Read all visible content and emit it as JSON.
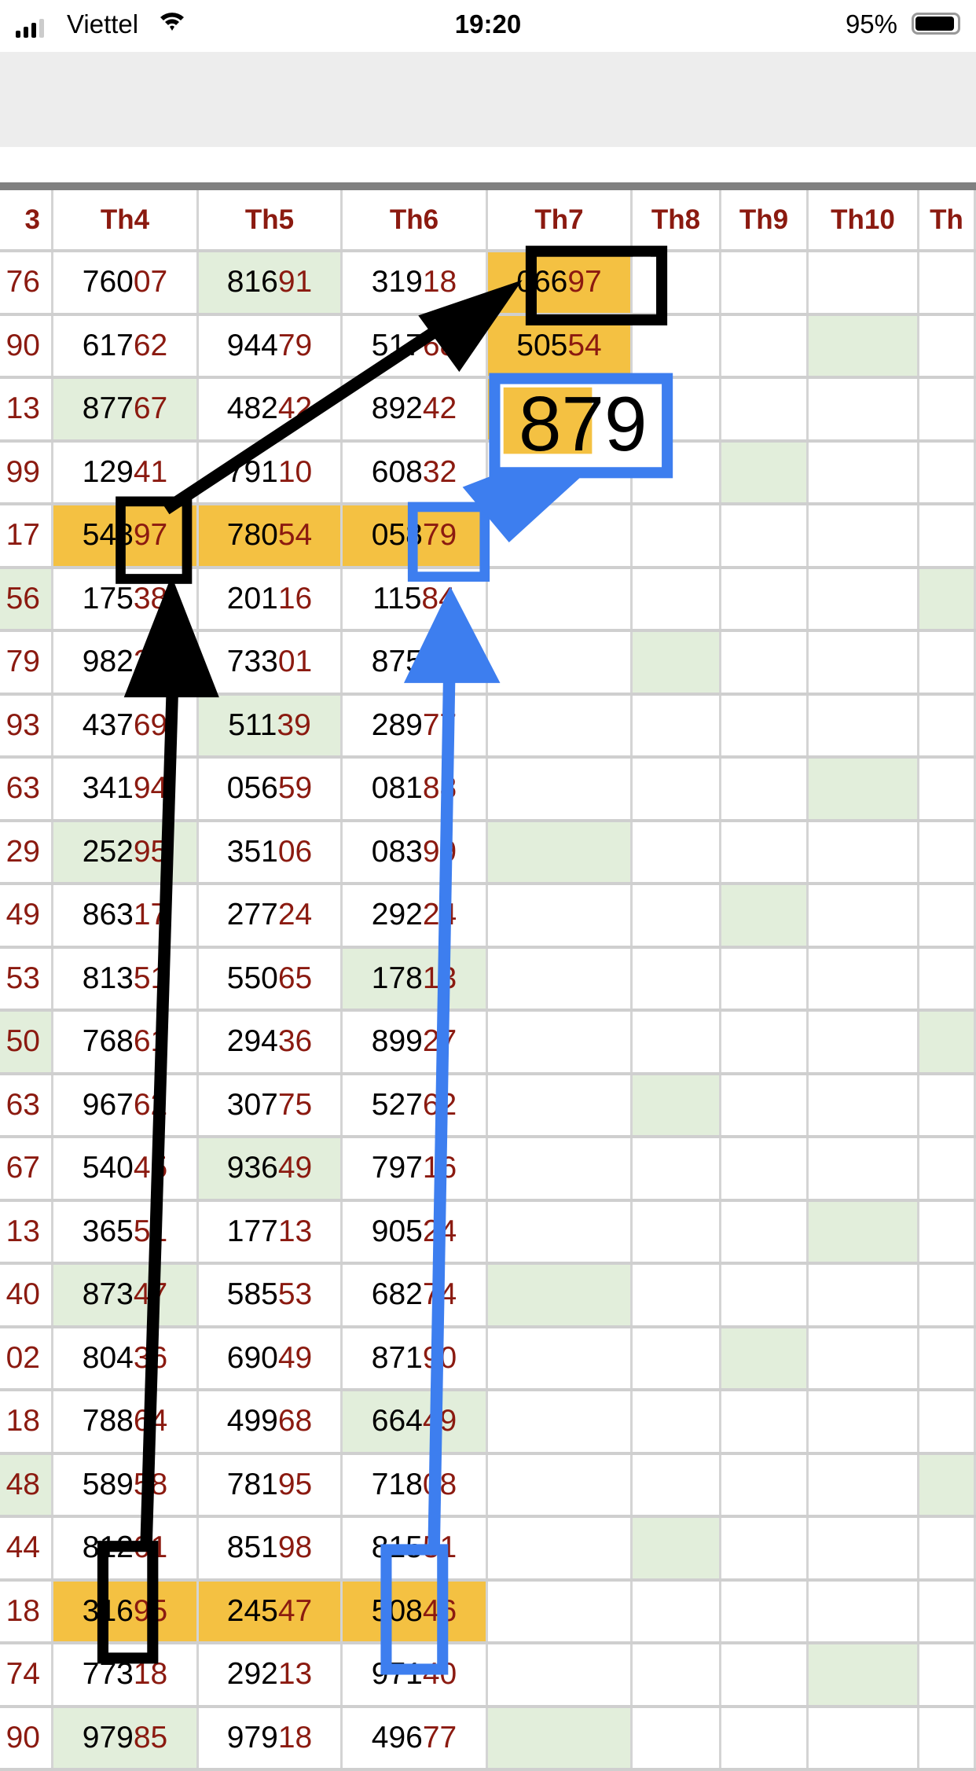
{
  "status_bar": {
    "carrier": "Viettel",
    "time": "19:20",
    "battery": "95%",
    "battery_level": 0.95,
    "icons": [
      "signal-icon",
      "wifi-icon",
      "battery-icon"
    ]
  },
  "table": {
    "headers": [
      "3",
      "Th4",
      "Th5",
      "Th6",
      "Th7",
      "Th8",
      "Th9",
      "Th10",
      "Th"
    ],
    "rows": [
      {
        "cells": [
          "76",
          "76007",
          "81691",
          "31918",
          "06697",
          "",
          "",
          "",
          ""
        ],
        "bg": [
          "",
          "",
          "g",
          "",
          "y",
          "",
          "",
          "",
          ""
        ]
      },
      {
        "cells": [
          "90",
          "61762",
          "94479",
          "51768",
          "50554",
          "",
          "",
          "",
          ""
        ],
        "bg": [
          "",
          "",
          "",
          "",
          "y",
          "",
          "",
          "g",
          ""
        ]
      },
      {
        "cells": [
          "13",
          "87767",
          "48242",
          "89242",
          "",
          "",
          "",
          "",
          ""
        ],
        "bg": [
          "",
          "g",
          "",
          "",
          "y",
          "",
          "",
          "",
          ""
        ]
      },
      {
        "cells": [
          "99",
          "12941",
          "79110",
          "60832",
          "",
          "",
          "",
          "",
          ""
        ],
        "bg": [
          "",
          "",
          "",
          "",
          "",
          "",
          "g",
          "",
          ""
        ]
      },
      {
        "cells": [
          "17",
          "54897",
          "78054",
          "05879",
          "",
          "",
          "",
          "",
          ""
        ],
        "bg": [
          "",
          "y",
          "y",
          "y",
          "",
          "",
          "",
          "",
          ""
        ]
      },
      {
        "cells": [
          "56",
          "17538",
          "20116",
          "11584",
          "",
          "",
          "",
          "",
          ""
        ],
        "bg": [
          "g",
          "",
          "",
          "",
          "",
          "",
          "",
          "",
          "g"
        ]
      },
      {
        "cells": [
          "79",
          "98227",
          "73301",
          "87515",
          "",
          "",
          "",
          "",
          ""
        ],
        "bg": [
          "",
          "",
          "",
          "",
          "",
          "g",
          "",
          "",
          ""
        ]
      },
      {
        "cells": [
          "93",
          "43769",
          "51139",
          "28977",
          "",
          "",
          "",
          "",
          ""
        ],
        "bg": [
          "",
          "",
          "g",
          "",
          "",
          "",
          "",
          "",
          ""
        ]
      },
      {
        "cells": [
          "63",
          "34194",
          "05659",
          "08188",
          "",
          "",
          "",
          "",
          ""
        ],
        "bg": [
          "",
          "",
          "",
          "",
          "",
          "",
          "",
          "g",
          ""
        ]
      },
      {
        "cells": [
          "29",
          "25295",
          "35106",
          "08399",
          "",
          "",
          "",
          "",
          ""
        ],
        "bg": [
          "",
          "g",
          "",
          "",
          "g",
          "",
          "",
          "",
          ""
        ]
      },
      {
        "cells": [
          "49",
          "86317",
          "27724",
          "29224",
          "",
          "",
          "",
          "",
          ""
        ],
        "bg": [
          "",
          "",
          "",
          "",
          "",
          "",
          "g",
          "",
          ""
        ]
      },
      {
        "cells": [
          "53",
          "81351",
          "55065",
          "17813",
          "",
          "",
          "",
          "",
          ""
        ],
        "bg": [
          "",
          "",
          "",
          "g",
          "",
          "",
          "",
          "",
          ""
        ]
      },
      {
        "cells": [
          "50",
          "76861",
          "29436",
          "89927",
          "",
          "",
          "",
          "",
          ""
        ],
        "bg": [
          "g",
          "",
          "",
          "",
          "",
          "",
          "",
          "",
          "g"
        ]
      },
      {
        "cells": [
          "63",
          "96762",
          "30775",
          "52762",
          "",
          "",
          "",
          "",
          ""
        ],
        "bg": [
          "",
          "",
          "",
          "",
          "",
          "g",
          "",
          "",
          ""
        ]
      },
      {
        "cells": [
          "67",
          "54045",
          "93649",
          "79716",
          "",
          "",
          "",
          "",
          ""
        ],
        "bg": [
          "",
          "",
          "g",
          "",
          "",
          "",
          "",
          "",
          ""
        ]
      },
      {
        "cells": [
          "13",
          "36551",
          "17713",
          "90524",
          "",
          "",
          "",
          "",
          ""
        ],
        "bg": [
          "",
          "",
          "",
          "",
          "",
          "",
          "",
          "g",
          ""
        ]
      },
      {
        "cells": [
          "40",
          "87347",
          "58553",
          "68274",
          "",
          "",
          "",
          "",
          ""
        ],
        "bg": [
          "",
          "g",
          "",
          "",
          "g",
          "",
          "",
          "",
          ""
        ]
      },
      {
        "cells": [
          "02",
          "80436",
          "69049",
          "87190",
          "",
          "",
          "",
          "",
          ""
        ],
        "bg": [
          "",
          "",
          "",
          "",
          "",
          "",
          "g",
          "",
          ""
        ]
      },
      {
        "cells": [
          "18",
          "78864",
          "49968",
          "66449",
          "",
          "",
          "",
          "",
          ""
        ],
        "bg": [
          "",
          "",
          "",
          "g",
          "",
          "",
          "",
          "",
          ""
        ]
      },
      {
        "cells": [
          "48",
          "58958",
          "78195",
          "71808",
          "",
          "",
          "",
          "",
          ""
        ],
        "bg": [
          "g",
          "",
          "",
          "",
          "",
          "",
          "",
          "",
          "g"
        ]
      },
      {
        "cells": [
          "44",
          "81201",
          "85198",
          "81551",
          "",
          "",
          "",
          "",
          ""
        ],
        "bg": [
          "",
          "",
          "",
          "",
          "",
          "g",
          "",
          "",
          ""
        ]
      },
      {
        "cells": [
          "18",
          "31695",
          "24547",
          "50846",
          "",
          "",
          "",
          "",
          ""
        ],
        "bg": [
          "",
          "y",
          "y",
          "y",
          "",
          "",
          "",
          "",
          ""
        ]
      },
      {
        "cells": [
          "74",
          "77318",
          "29213",
          "97140",
          "",
          "",
          "",
          "",
          ""
        ],
        "bg": [
          "",
          "",
          "",
          "",
          "",
          "",
          "",
          "g",
          ""
        ]
      },
      {
        "cells": [
          "90",
          "97985",
          "97918",
          "49677",
          "",
          "",
          "",
          "",
          ""
        ],
        "bg": [
          "",
          "g",
          "",
          "",
          "g",
          "",
          "",
          "",
          ""
        ]
      }
    ]
  },
  "annotation": {
    "label": "879",
    "colors": {
      "black": "#000000",
      "blue": "#3d7eef"
    }
  },
  "colors": {
    "accent_red": "#8b1a10",
    "highlight_yellow": "#f4c142",
    "highlight_green": "#e2eedb"
  }
}
